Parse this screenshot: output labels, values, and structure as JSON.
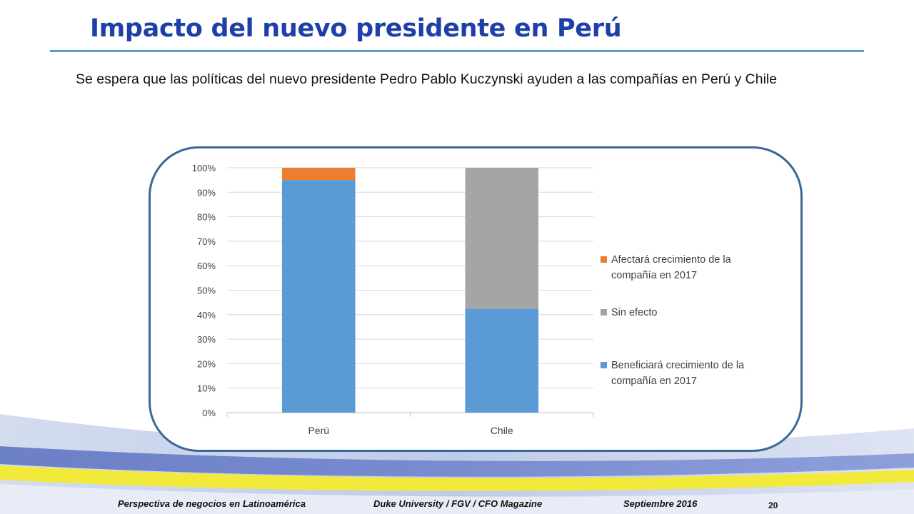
{
  "slide": {
    "title": "Impacto del nuevo presidente en Perú",
    "subtitle": "Se espera que las políticas del nuevo presidente Pedro Pablo Kuczynski ayuden a las compañías en Perú y Chile",
    "footer": {
      "source": "Perspectiva de negocios en Latinoamérica",
      "publisher": "Duke University / FGV / CFO Magazine",
      "date": "Septiembre 2016"
    },
    "page_number": "20"
  },
  "colors": {
    "title": "#1f3fa8",
    "beneficia": "#5b9bd5",
    "sin_efecto": "#a5a5a5",
    "afectara": "#ed7d31",
    "frame": "#3c6896"
  },
  "chart_data": {
    "type": "bar",
    "stacked": true,
    "categories": [
      "Perú",
      "Chile"
    ],
    "series": [
      {
        "name": "Beneficiará crecimiento de la compañía en 2017",
        "color": "#5b9bd5",
        "values": [
          95,
          42.5
        ]
      },
      {
        "name": "Sin efecto",
        "color": "#a5a5a5",
        "values": [
          0,
          57.5
        ]
      },
      {
        "name": "Afectará crecimiento de la compañía en 2017",
        "color": "#ed7d31",
        "values": [
          5,
          0
        ]
      }
    ],
    "legend_order": [
      2,
      1,
      0
    ],
    "ylim": [
      0,
      100
    ],
    "yticks": [
      "0%",
      "10%",
      "20%",
      "30%",
      "40%",
      "50%",
      "60%",
      "70%",
      "80%",
      "90%",
      "100%"
    ],
    "grid": true,
    "legend_position": "right"
  }
}
